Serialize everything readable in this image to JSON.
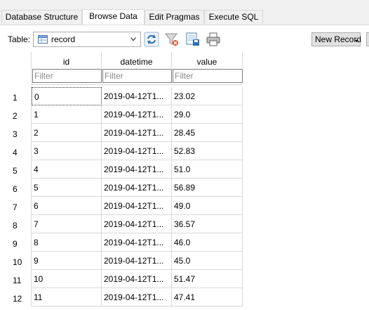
{
  "tabs": [
    {
      "label": "Database Structure"
    },
    {
      "label": "Browse Data"
    },
    {
      "label": "Edit Pragmas"
    },
    {
      "label": "Execute SQL"
    }
  ],
  "toolbar": {
    "table_label": "Table:",
    "selected_table": "record",
    "new_record_label": "New Record"
  },
  "grid": {
    "columns": [
      "id",
      "datetime",
      "value"
    ],
    "filter_placeholder": "Filter",
    "rows": [
      {
        "num": "1",
        "id": "0",
        "datetime": "2019-04-12T1...",
        "value": "23.02"
      },
      {
        "num": "2",
        "id": "1",
        "datetime": "2019-04-12T1...",
        "value": "29.0"
      },
      {
        "num": "3",
        "id": "2",
        "datetime": "2019-04-12T1...",
        "value": "28.45"
      },
      {
        "num": "4",
        "id": "3",
        "datetime": "2019-04-12T1...",
        "value": "52.83"
      },
      {
        "num": "5",
        "id": "4",
        "datetime": "2019-04-12T1...",
        "value": "51.0"
      },
      {
        "num": "6",
        "id": "5",
        "datetime": "2019-04-12T1...",
        "value": "56.89"
      },
      {
        "num": "7",
        "id": "6",
        "datetime": "2019-04-12T1...",
        "value": "49.0"
      },
      {
        "num": "8",
        "id": "7",
        "datetime": "2019-04-12T1...",
        "value": "36.57"
      },
      {
        "num": "9",
        "id": "8",
        "datetime": "2019-04-12T1...",
        "value": "46.0"
      },
      {
        "num": "10",
        "id": "9",
        "datetime": "2019-04-12T1...",
        "value": "45.0"
      },
      {
        "num": "11",
        "id": "10",
        "datetime": "2019-04-12T1...",
        "value": "51.47"
      },
      {
        "num": "12",
        "id": "11",
        "datetime": "2019-04-12T1...",
        "value": "47.41"
      }
    ]
  },
  "icons": {
    "table": "table-icon",
    "refresh": "refresh-icon",
    "clear_filters": "clear-filters-icon",
    "save_table": "save-table-icon",
    "print": "print-icon"
  }
}
